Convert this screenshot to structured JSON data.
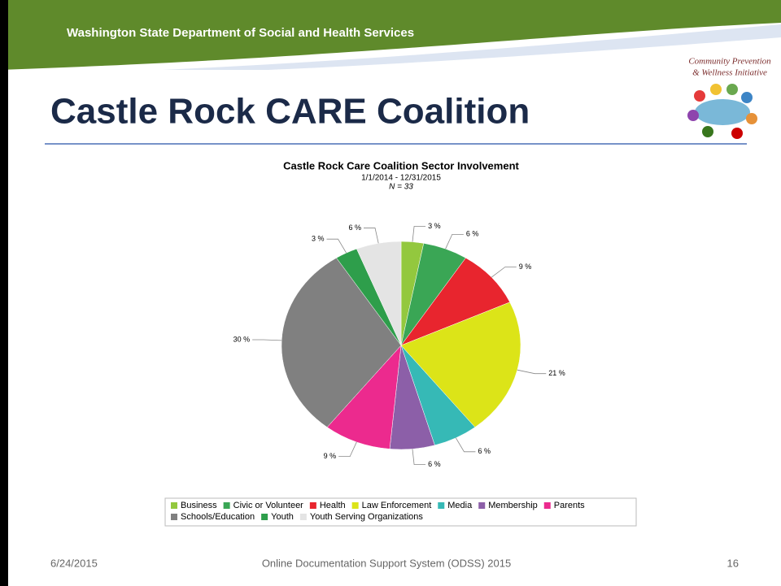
{
  "header": {
    "organization": "Washington State Department of Social and Health Services",
    "logo_line1": "Community Prevention",
    "logo_line2": "& Wellness Initiative",
    "title": "Castle Rock CARE Coalition"
  },
  "chart_data": {
    "type": "pie",
    "title": "Castle Rock Care Coalition Sector Involvement",
    "subtitle": "1/1/2014 - 12/31/2015",
    "note": "N = 33",
    "categories": [
      "Business",
      "Civic or Volunteer",
      "Health",
      "Law Enforcement",
      "Media",
      "Membership",
      "Parents",
      "Schools/Education",
      "Youth",
      "Youth Serving Organizations"
    ],
    "values": [
      3,
      6,
      9,
      21,
      6,
      6,
      9,
      30,
      3,
      6
    ],
    "value_labels": [
      "3 %",
      "6 %",
      "9 %",
      "21 %",
      "6 %",
      "6 %",
      "9 %",
      "30 %",
      "3 %",
      "6 %"
    ],
    "colors": [
      "#93c83e",
      "#3aa655",
      "#e8252e",
      "#dce418",
      "#36b9b6",
      "#8c5fa8",
      "#ec2a8e",
      "#808080",
      "#2e9e4b",
      "#e4e4e4"
    ],
    "legend": "bottom"
  },
  "footer": {
    "date": "6/24/2015",
    "center": "Online Documentation Support System (ODSS) 2015",
    "page": 16
  }
}
